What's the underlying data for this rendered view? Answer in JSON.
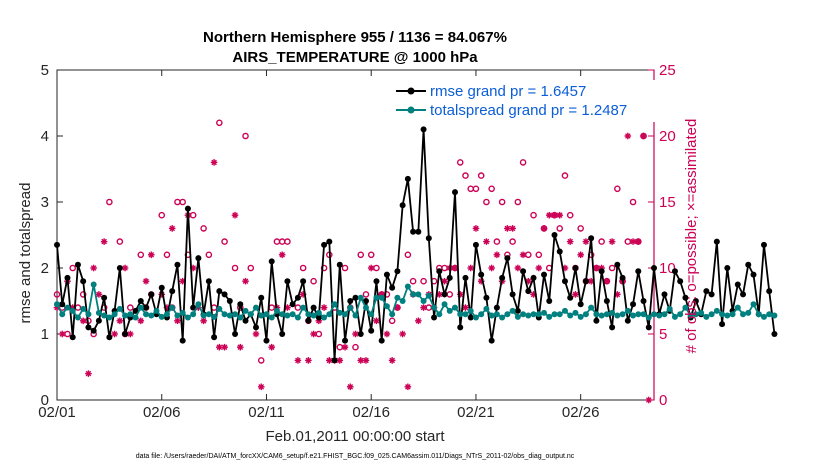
{
  "chart_data": {
    "type": "line",
    "title_line1": "Northern Hemisphere 955 / 1136 = 84.067%",
    "title_line2": "AIRS_TEMPERATURE @ 1000 hPa",
    "xlabel": "Feb.01,2011 00:00:00 start",
    "ylabel_left": "rmse and totalspread",
    "ylabel_right": "# of obs: o=possible; ×=assimilated",
    "x_ticks": [
      "02/01",
      "02/06",
      "02/11",
      "02/16",
      "02/21",
      "02/26"
    ],
    "y_ticks_left": [
      "0",
      "1",
      "2",
      "3",
      "4",
      "5"
    ],
    "y_ticks_right": [
      "0",
      "5",
      "10",
      "15",
      "20",
      "25"
    ],
    "ylim_left": [
      0,
      5
    ],
    "ylim_right": [
      0,
      25
    ],
    "xlim_days": [
      0,
      28.5
    ],
    "footer": "data file: /Users/raeder/DAI/ATM_forcXX/CAM6_setup/f.e21.FHIST_BGC.f09_025.CAM6assim.011/Diags_NTrS_2011-02/obs_diag_output.nc",
    "colors": {
      "rmse": "#000000",
      "spread": "#00807f",
      "obs": "#cc0055",
      "legend_text": "#0b5ed7"
    },
    "series": [
      {
        "name": "rmse grand pr = 1.6457",
        "values": [
          2.35,
          1.45,
          1.85,
          0.95,
          2.05,
          1.8,
          1.1,
          1.05,
          1.2,
          1.55,
          0.95,
          1.35,
          2.0,
          1.0,
          1.25,
          1.35,
          1.5,
          1.4,
          1.6,
          1.3,
          1.7,
          1.25,
          1.65,
          2.05,
          0.9,
          2.9,
          1.4,
          2.15,
          1.3,
          1.8,
          0.95,
          1.65,
          1.6,
          1.5,
          1.0,
          1.45,
          1.2,
          1.3,
          1.1,
          1.55,
          0.9,
          2.1,
          1.3,
          1.0,
          1.8,
          1.45,
          1.55,
          1.8,
          1.2,
          1.4,
          1.25,
          2.35,
          2.4,
          0.6,
          2.05,
          0.9,
          1.5,
          1.55,
          1.0,
          1.5,
          1.05,
          1.8,
          0.9,
          1.9,
          1.7,
          1.95,
          2.95,
          3.35,
          2.55,
          2.55,
          4.1,
          2.45,
          1.25,
          1.95,
          1.6,
          1.85,
          3.15,
          1.1,
          1.85,
          1.25,
          2.35,
          1.9,
          1.55,
          0.9,
          1.4,
          1.85,
          2.15,
          1.6,
          1.35,
          1.95,
          1.65,
          1.85,
          1.25,
          1.9,
          1.5,
          2.5,
          2.25,
          1.8,
          1.55,
          2.0,
          1.45,
          1.8,
          2.45,
          1.2,
          1.95,
          1.5,
          1.1,
          2.05,
          1.85,
          1.2,
          1.45,
          1.95,
          1.5,
          1.1,
          2.0,
          1.3,
          1.6,
          1.35,
          1.95,
          1.8,
          1.55,
          1.25,
          1.5,
          1.3,
          1.65,
          1.6,
          2.4,
          1.15,
          2.0,
          1.35,
          1.75,
          1.6,
          2.05,
          1.9,
          1.3,
          2.35,
          1.65,
          1.0
        ],
        "unit": "days",
        "x_step": 0.25
      },
      {
        "name": "totalspread grand pr = 1.2487",
        "values": [
          1.45,
          1.3,
          1.4,
          1.35,
          1.25,
          1.38,
          1.3,
          1.75,
          1.32,
          1.28,
          1.25,
          1.3,
          1.38,
          1.28,
          1.3,
          1.25,
          1.4,
          1.3,
          1.28,
          1.35,
          1.26,
          1.3,
          1.4,
          1.28,
          1.32,
          1.25,
          1.3,
          1.45,
          1.28,
          1.3,
          1.26,
          1.38,
          1.3,
          1.28,
          1.3,
          1.25,
          1.35,
          1.3,
          1.4,
          1.28,
          1.3,
          1.25,
          1.35,
          1.3,
          1.28,
          1.3,
          1.25,
          1.4,
          1.3,
          1.28,
          1.32,
          1.25,
          1.3,
          1.45,
          1.32,
          1.3,
          1.4,
          1.28,
          1.55,
          1.4,
          1.3,
          1.55,
          1.55,
          1.42,
          1.3,
          1.55,
          1.5,
          1.72,
          1.6,
          1.6,
          1.5,
          1.58,
          1.4,
          1.3,
          1.45,
          1.35,
          1.4,
          1.3,
          1.3,
          1.35,
          1.25,
          1.3,
          1.38,
          1.28,
          1.3,
          1.25,
          1.3,
          1.35,
          1.26,
          1.3,
          1.28,
          1.3,
          1.3,
          1.32,
          1.26,
          1.3,
          1.3,
          1.35,
          1.28,
          1.32,
          1.26,
          1.3,
          1.4,
          1.3,
          1.28,
          1.3,
          1.32,
          1.28,
          1.3,
          1.35,
          1.28,
          1.3,
          1.3,
          1.25,
          1.3,
          1.28,
          1.3,
          1.38,
          1.26,
          1.3,
          1.4,
          1.28,
          1.3,
          1.32,
          1.26,
          1.3,
          1.35,
          1.3,
          1.28,
          1.3,
          1.4,
          1.3,
          1.32,
          1.45,
          1.3,
          1.26,
          1.3,
          1.28
        ],
        "unit": "days",
        "x_step": 0.25
      }
    ],
    "obs_possible": [
      [
        0.0,
        8
      ],
      [
        0.25,
        7
      ],
      [
        0.5,
        5
      ],
      [
        0.75,
        10
      ],
      [
        1.0,
        7
      ],
      [
        1.25,
        8
      ],
      [
        1.5,
        6
      ],
      [
        1.75,
        5
      ],
      [
        2.25,
        7
      ],
      [
        2.5,
        15
      ],
      [
        3.0,
        12
      ],
      [
        3.25,
        5
      ],
      [
        3.5,
        7
      ],
      [
        4.0,
        11
      ],
      [
        4.25,
        7
      ],
      [
        4.5,
        8
      ],
      [
        5.0,
        14
      ],
      [
        5.25,
        11
      ],
      [
        5.5,
        7
      ],
      [
        5.75,
        15
      ],
      [
        6.0,
        15
      ],
      [
        6.25,
        11
      ],
      [
        6.5,
        14
      ],
      [
        7.0,
        13
      ],
      [
        7.25,
        11
      ],
      [
        7.5,
        7
      ],
      [
        7.75,
        21
      ],
      [
        8.0,
        12
      ],
      [
        8.5,
        10
      ],
      [
        8.75,
        7
      ],
      [
        9.0,
        20
      ],
      [
        9.25,
        10
      ],
      [
        9.75,
        3
      ],
      [
        10.25,
        7
      ],
      [
        10.5,
        12
      ],
      [
        10.75,
        12
      ],
      [
        11.0,
        12
      ],
      [
        11.5,
        7
      ],
      [
        11.75,
        10
      ],
      [
        12.0,
        6
      ],
      [
        12.25,
        9
      ],
      [
        12.5,
        5
      ],
      [
        12.75,
        10
      ],
      [
        13.0,
        11
      ],
      [
        13.25,
        7
      ],
      [
        13.5,
        4
      ],
      [
        13.75,
        10
      ],
      [
        14.0,
        7
      ],
      [
        14.25,
        4
      ],
      [
        14.5,
        11
      ],
      [
        14.75,
        8
      ],
      [
        15.0,
        11
      ],
      [
        15.25,
        10
      ],
      [
        15.5,
        8
      ],
      [
        15.75,
        8
      ],
      [
        16.0,
        6
      ],
      [
        16.25,
        7
      ],
      [
        16.75,
        11
      ],
      [
        17.0,
        9
      ],
      [
        17.5,
        9
      ],
      [
        17.75,
        7
      ],
      [
        18.0,
        9
      ],
      [
        18.25,
        10
      ],
      [
        18.5,
        10
      ],
      [
        18.75,
        8
      ],
      [
        19.0,
        10
      ],
      [
        19.25,
        18
      ],
      [
        19.5,
        17
      ],
      [
        19.75,
        16
      ],
      [
        20.0,
        16
      ],
      [
        20.25,
        17
      ],
      [
        20.5,
        15
      ],
      [
        20.75,
        16
      ],
      [
        21.0,
        12
      ],
      [
        21.25,
        15
      ],
      [
        21.5,
        11
      ],
      [
        21.75,
        12
      ],
      [
        22.0,
        15
      ],
      [
        22.25,
        18
      ],
      [
        22.5,
        11
      ],
      [
        22.75,
        14
      ],
      [
        23.0,
        11
      ],
      [
        23.25,
        13
      ],
      [
        23.5,
        10
      ],
      [
        23.75,
        14
      ],
      [
        24.0,
        13
      ],
      [
        24.25,
        17
      ],
      [
        24.5,
        14
      ],
      [
        24.75,
        10
      ],
      [
        25.0,
        13
      ],
      [
        25.25,
        9
      ],
      [
        25.5,
        11
      ],
      [
        25.75,
        10
      ],
      [
        26.0,
        12
      ],
      [
        26.25,
        9
      ],
      [
        26.5,
        10
      ],
      [
        26.75,
        16
      ],
      [
        27.0,
        9
      ],
      [
        27.25,
        12
      ],
      [
        27.5,
        15
      ],
      [
        27.75,
        12
      ],
      [
        28.0,
        20
      ],
      [
        28.25,
        22
      ]
    ],
    "obs_assimilated": [
      [
        0.0,
        7
      ],
      [
        0.25,
        5
      ],
      [
        0.5,
        9
      ],
      [
        0.75,
        7
      ],
      [
        1.25,
        6
      ],
      [
        1.5,
        2
      ],
      [
        1.75,
        10
      ],
      [
        2.0,
        8
      ],
      [
        2.25,
        12
      ],
      [
        2.75,
        5
      ],
      [
        3.0,
        6
      ],
      [
        3.25,
        10
      ],
      [
        3.5,
        5
      ],
      [
        4.0,
        6
      ],
      [
        4.25,
        9
      ],
      [
        4.5,
        11
      ],
      [
        5.0,
        8
      ],
      [
        5.25,
        7
      ],
      [
        5.5,
        13
      ],
      [
        5.75,
        6
      ],
      [
        6.0,
        9
      ],
      [
        6.25,
        14
      ],
      [
        6.5,
        10
      ],
      [
        6.75,
        7
      ],
      [
        7.0,
        6
      ],
      [
        7.5,
        18
      ],
      [
        7.75,
        4
      ],
      [
        8.0,
        4
      ],
      [
        8.5,
        14
      ],
      [
        8.75,
        4
      ],
      [
        9.0,
        9
      ],
      [
        9.5,
        5
      ],
      [
        9.75,
        1
      ],
      [
        10.25,
        4
      ],
      [
        10.5,
        7
      ],
      [
        10.75,
        11
      ],
      [
        11.0,
        7
      ],
      [
        11.5,
        3
      ],
      [
        11.75,
        8
      ],
      [
        12.0,
        3
      ],
      [
        12.25,
        5
      ],
      [
        12.5,
        6
      ],
      [
        12.75,
        7
      ],
      [
        13.0,
        3
      ],
      [
        13.25,
        3
      ],
      [
        13.5,
        3
      ],
      [
        13.75,
        4
      ],
      [
        14.0,
        1
      ],
      [
        14.25,
        5
      ],
      [
        14.5,
        3
      ],
      [
        14.75,
        3
      ],
      [
        15.0,
        10
      ],
      [
        15.25,
        6
      ],
      [
        15.5,
        8
      ],
      [
        15.75,
        5
      ],
      [
        16.0,
        3
      ],
      [
        16.25,
        7
      ],
      [
        16.5,
        5
      ],
      [
        16.75,
        1
      ],
      [
        17.0,
        8
      ],
      [
        17.25,
        6
      ],
      [
        17.5,
        7
      ],
      [
        17.75,
        8
      ],
      [
        18.0,
        7
      ],
      [
        18.25,
        8
      ],
      [
        18.5,
        9
      ],
      [
        18.75,
        10
      ],
      [
        19.0,
        10
      ],
      [
        19.25,
        8
      ],
      [
        19.5,
        7
      ],
      [
        19.75,
        10
      ],
      [
        20.0,
        13
      ],
      [
        20.25,
        9
      ],
      [
        20.5,
        12
      ],
      [
        20.75,
        10
      ],
      [
        21.0,
        11
      ],
      [
        21.25,
        9
      ],
      [
        21.5,
        13
      ],
      [
        21.75,
        13
      ],
      [
        22.0,
        10
      ],
      [
        22.25,
        11
      ],
      [
        22.5,
        9
      ],
      [
        22.75,
        8
      ],
      [
        23.0,
        10
      ],
      [
        23.25,
        13
      ],
      [
        23.5,
        14
      ],
      [
        23.75,
        14
      ],
      [
        24.0,
        14
      ],
      [
        24.25,
        10
      ],
      [
        24.5,
        12
      ],
      [
        24.75,
        8
      ],
      [
        25.0,
        11
      ],
      [
        25.25,
        12
      ],
      [
        25.5,
        9
      ],
      [
        25.75,
        10
      ],
      [
        26.0,
        10
      ],
      [
        26.25,
        9
      ],
      [
        26.5,
        12
      ],
      [
        26.75,
        8
      ],
      [
        27.0,
        9
      ],
      [
        27.25,
        20
      ],
      [
        27.5,
        12
      ],
      [
        27.75,
        12
      ],
      [
        28.0,
        20
      ],
      [
        28.25,
        0
      ]
    ]
  },
  "legend": {
    "position": "top-right"
  }
}
